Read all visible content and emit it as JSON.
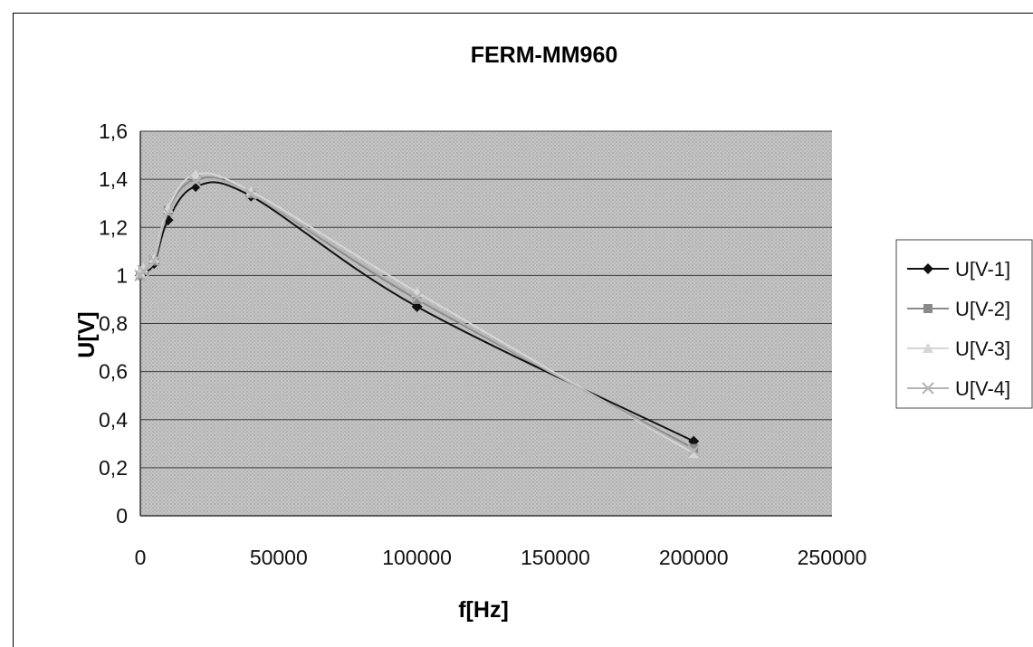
{
  "chart_data": {
    "type": "line",
    "title": "FERM-MM960",
    "xlabel": "f[Hz]",
    "ylabel": "U[V]",
    "xlim": [
      0,
      250000
    ],
    "ylim": [
      0,
      1.6
    ],
    "x_ticks": [
      "0",
      "50000",
      "100000",
      "150000",
      "200000",
      "250000"
    ],
    "y_ticks": [
      "0",
      "0,2",
      "0,4",
      "0,6",
      "0,8",
      "1",
      "1,2",
      "1,4",
      "1,6"
    ],
    "grid": "horizontal",
    "legend_position": "right",
    "series": [
      {
        "name": "U[V-1]",
        "color": "#111111",
        "marker": "diamond",
        "x": [
          0,
          1000,
          5000,
          10000,
          20000,
          40000,
          100000,
          200000
        ],
        "y": [
          1.0,
          1.01,
          1.05,
          1.23,
          1.37,
          1.33,
          0.87,
          0.31
        ]
      },
      {
        "name": "U[V-2]",
        "color": "#8a8a8a",
        "marker": "square",
        "x": [
          0,
          1000,
          5000,
          10000,
          20000,
          40000,
          100000,
          200000
        ],
        "y": [
          1.0,
          1.02,
          1.06,
          1.27,
          1.4,
          1.34,
          0.9,
          0.28
        ]
      },
      {
        "name": "U[V-3]",
        "color": "#d6d6d6",
        "marker": "triangle",
        "x": [
          0,
          1000,
          5000,
          10000,
          20000,
          40000,
          100000,
          200000
        ],
        "y": [
          1.01,
          1.03,
          1.07,
          1.28,
          1.42,
          1.35,
          0.93,
          0.26
        ]
      },
      {
        "name": "U[V-4]",
        "color": "#b4b4b4",
        "marker": "x",
        "x": [
          0,
          1000,
          5000,
          10000,
          20000,
          40000,
          100000,
          200000
        ],
        "y": [
          1.0,
          1.02,
          1.06,
          1.26,
          1.39,
          1.34,
          0.91,
          0.27
        ]
      }
    ]
  }
}
